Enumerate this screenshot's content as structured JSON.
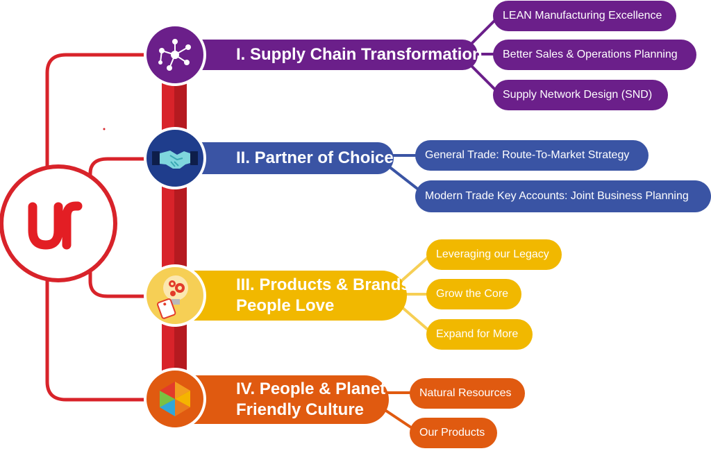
{
  "logo": {
    "text": "UR",
    "color": "#e31e24"
  },
  "colors": {
    "trunk": "#d8232a",
    "supply_chain": "#6b1f8a",
    "partner": "#3a54a4",
    "products": "#f1b800",
    "people": "#e05a10"
  },
  "pillars": [
    {
      "title": "I. Supply Chain Transformation",
      "icon": "network-icon",
      "items": [
        "LEAN Manufacturing Excellence",
        "Better Sales & Operations Planning",
        "Supply Network Design (SND)"
      ]
    },
    {
      "title": "II.  Partner of Choice",
      "icon": "handshake-icon",
      "items": [
        "General Trade: Route-To-Market Strategy",
        "Modern Trade Key Accounts: Joint Business Planning"
      ]
    },
    {
      "title_line1": "III.  Products & Brands",
      "title_line2": "People Love",
      "icon": "lightbulb-gears-icon",
      "items": [
        "Leveraging our Legacy",
        "Grow the Core",
        "Expand for More"
      ]
    },
    {
      "title_line1": "IV. People & Planet",
      "title_line2": "Friendly Culture",
      "icon": "colorful-hexagon-icon",
      "items": [
        "Natural Resources",
        "Our Products"
      ]
    }
  ]
}
